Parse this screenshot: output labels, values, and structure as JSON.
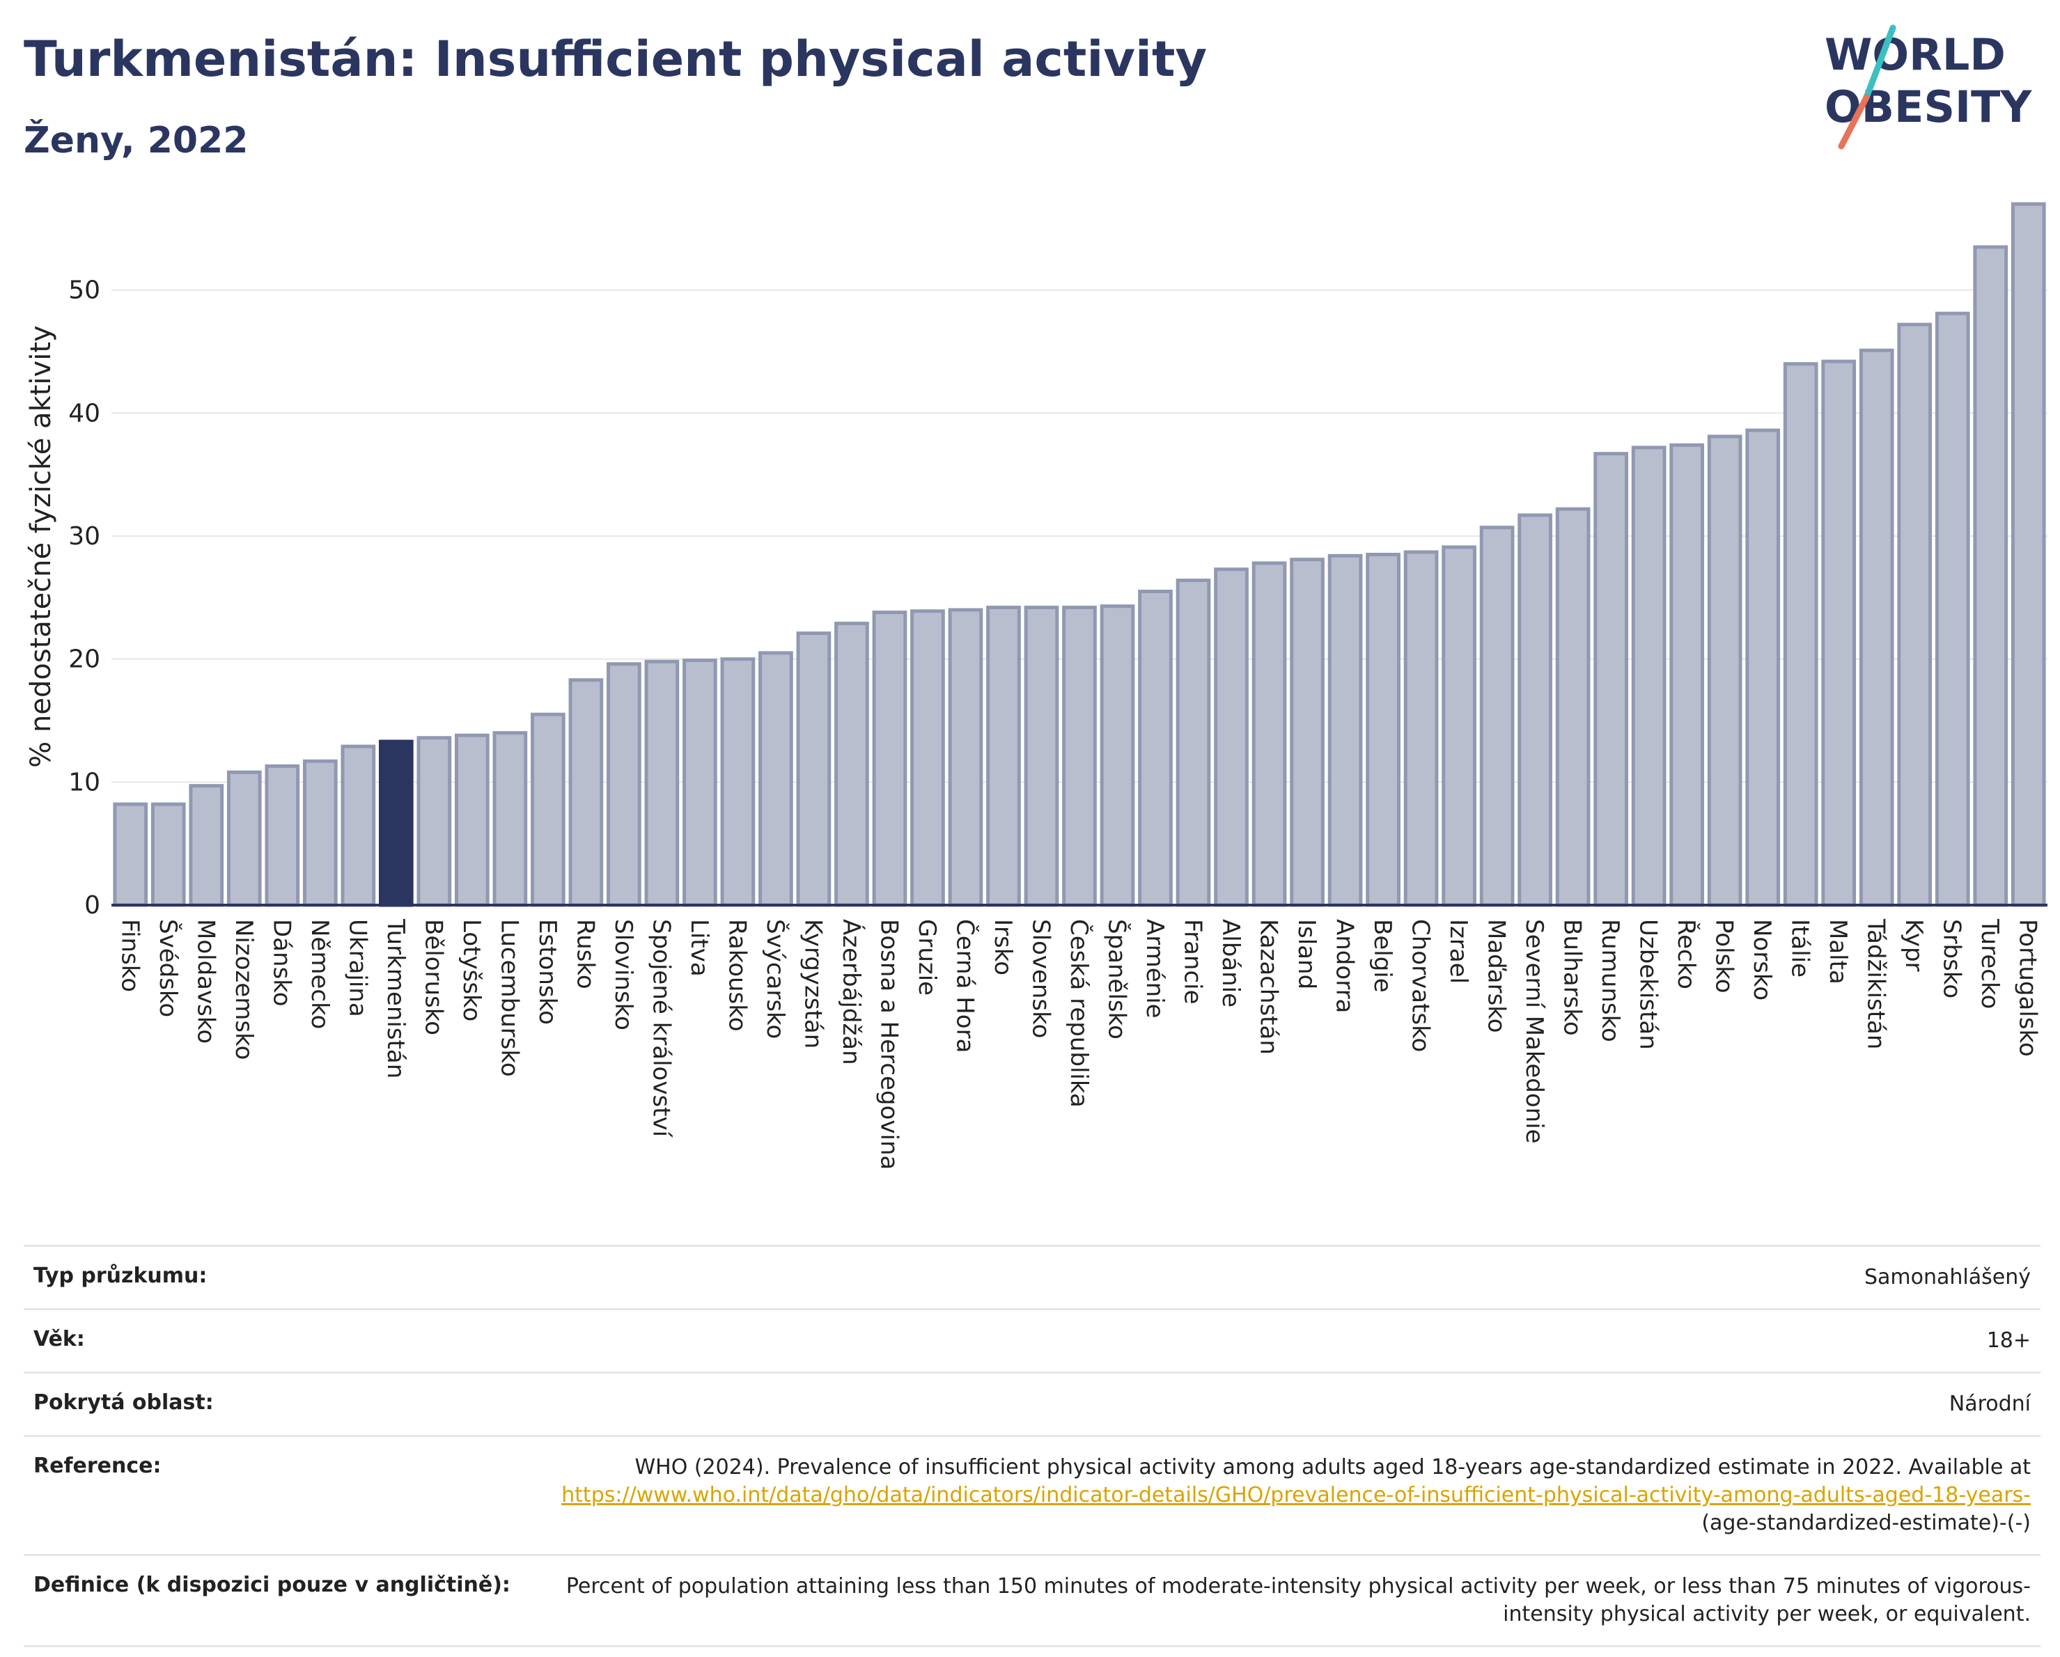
{
  "header": {
    "title": "Turkmenistán: Insufficient physical activity",
    "subtitle": "Ženy, 2022"
  },
  "logo": {
    "line1": "WORLD",
    "line2": "OBESITY",
    "colors": {
      "text": "#2b3660",
      "slash_top": "#3cbfbf",
      "slash_bottom": "#e8735a"
    }
  },
  "colors": {
    "bar": "#b9becf",
    "bar_stroke": "#9198b1",
    "highlight": "#2b3660",
    "grid": "#e6e6e6",
    "link": "#d9a400"
  },
  "chart_data": {
    "type": "bar",
    "title": "",
    "xlabel": "",
    "ylabel": "% nedostatečné fyzické aktivity",
    "ylim": [
      0,
      60
    ],
    "yticks": [
      0,
      10,
      20,
      30,
      40,
      50
    ],
    "grid": true,
    "highlight": "Turkmenistán",
    "categories": [
      "Finsko",
      "Švédsko",
      "Moldavsko",
      "Nizozemsko",
      "Dánsko",
      "Německo",
      "Ukrajina",
      "Turkmenistán",
      "Bělorusko",
      "Lotyšsko",
      "Lucembursko",
      "Estonsko",
      "Rusko",
      "Slovinsko",
      "Spojené království",
      "Litva",
      "Rakousko",
      "Švýcarsko",
      "Kyrgyzstán",
      "Ázerbájdžán",
      "Bosna a Hercegovina",
      "Gruzie",
      "Černá Hora",
      "Irsko",
      "Slovensko",
      "Česká republika",
      "Španělsko",
      "Arménie",
      "Francie",
      "Albánie",
      "Kazachstán",
      "Island",
      "Andorra",
      "Belgie",
      "Chorvatsko",
      "Izrael",
      "Maďarsko",
      "Severní Makedonie",
      "Bulharsko",
      "Rumunsko",
      "Uzbekistán",
      "Řecko",
      "Polsko",
      "Norsko",
      "Itálie",
      "Malta",
      "Tádžikistán",
      "Kypr",
      "Srbsko",
      "Turecko",
      "Portugalsko"
    ],
    "values": [
      8.2,
      8.2,
      9.7,
      10.8,
      11.3,
      11.7,
      12.9,
      13.3,
      13.6,
      13.8,
      14.0,
      15.5,
      18.3,
      19.6,
      19.8,
      19.9,
      20.0,
      20.5,
      22.1,
      22.9,
      23.8,
      23.9,
      24.0,
      24.2,
      24.2,
      24.2,
      24.3,
      25.5,
      26.4,
      27.3,
      27.8,
      28.1,
      28.4,
      28.5,
      28.7,
      29.1,
      30.7,
      31.7,
      32.2,
      36.7,
      37.2,
      37.4,
      38.1,
      38.6,
      44.0,
      44.2,
      45.1,
      47.2,
      48.1,
      53.5,
      57.0
    ]
  },
  "info": {
    "survey_type": {
      "label": "Typ průzkumu:",
      "value": "Samonahlášený"
    },
    "age": {
      "label": "Věk:",
      "value": "18+"
    },
    "coverage": {
      "label": "Pokrytá oblast:",
      "value": "Národní"
    },
    "reference": {
      "label": "Reference:",
      "text": "WHO (2024). Prevalence of insufficient physical activity among adults aged 18-years age-standardized estimate in 2022. Available at",
      "link": "https://www.who.int/data/gho/data/indicators/indicator-details/GHO/prevalence-of-insufficient-physical-activity-among-adults-aged-18-years-",
      "suffix": "(age-standardized-estimate)-(-)"
    },
    "definition": {
      "label": "Definice (k dispozici pouze v angličtině):",
      "value": "Percent of population attaining less than 150 minutes of moderate-intensity physical activity per week, or less than 75 minutes of vigorous-intensity physical activity per week, or equivalent."
    }
  }
}
